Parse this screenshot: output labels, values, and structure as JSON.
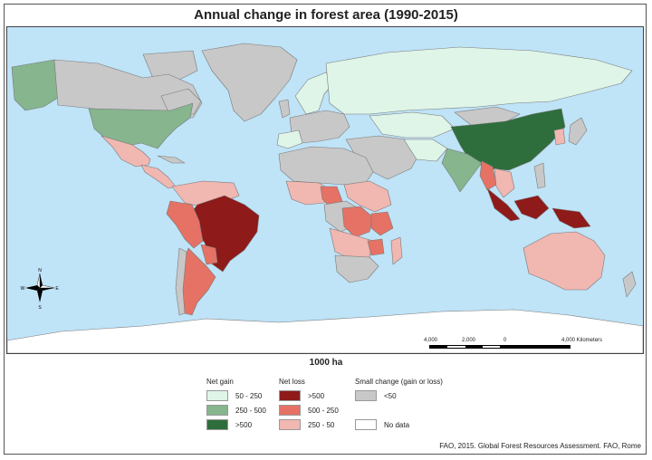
{
  "title": "Annual change in forest area (1990-2015)",
  "legend_title": "1000 ha",
  "colors": {
    "ocean": "#bfe3f7",
    "gain_50_250": "#def5e8",
    "gain_250_500": "#86b58e",
    "gain_over_500": "#2e6e3c",
    "loss_over_500": "#8e1a1a",
    "loss_500_250": "#e57264",
    "loss_250_50": "#f1b7b1",
    "small_change": "#c8c8c8",
    "no_data": "#ffffff"
  },
  "legend": {
    "net_gain": {
      "title": "Net gain",
      "items": [
        {
          "label": "50 - 250",
          "color": "#def5e8"
        },
        {
          "label": "250 - 500",
          "color": "#86b58e"
        },
        {
          "label": ">500",
          "color": "#2e6e3c"
        }
      ]
    },
    "net_loss": {
      "title": "Net loss",
      "items": [
        {
          "label": ">500",
          "color": "#8e1a1a"
        },
        {
          "label": "500 - 250",
          "color": "#e57264"
        },
        {
          "label": "250 - 50",
          "color": "#f1b7b1"
        }
      ]
    },
    "small_change": {
      "title": "Small change (gain or loss)",
      "items": [
        {
          "label": "<50",
          "color": "#c8c8c8"
        },
        {
          "label": "No data",
          "color": "#ffffff"
        }
      ]
    }
  },
  "scale_bar": {
    "labels": [
      "4,000",
      "2,000",
      "0",
      "4,000 Kilometers"
    ]
  },
  "compass": {
    "north": "N",
    "south": "S",
    "east": "E",
    "west": "W"
  },
  "source": "FAO, 2015. Global Forest Resources Assessment. FAO, Rome"
}
